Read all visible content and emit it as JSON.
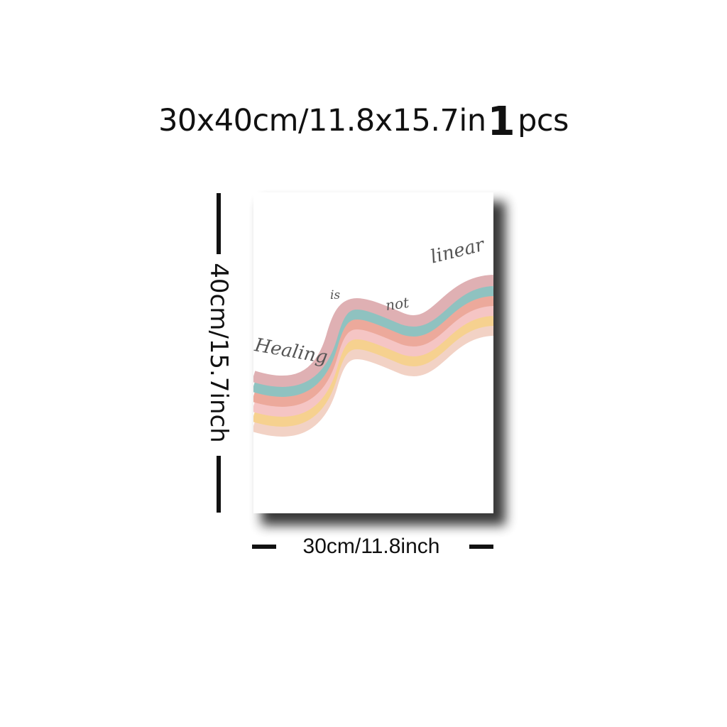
{
  "header": {
    "size_text": "30x40cm/11.8x15.7in",
    "quantity_number": "1",
    "quantity_unit": "pcs"
  },
  "dimensions": {
    "height_label": "40cm/15.7inch",
    "width_label": "30cm/11.8inch"
  },
  "poster": {
    "words": [
      "Healing",
      "is",
      "not",
      "linear"
    ],
    "wave_colors": [
      "#dfb0b3",
      "#8fc2c0",
      "#eca99b",
      "#f5c5c4",
      "#f6d18f",
      "#f2d2c5"
    ]
  }
}
